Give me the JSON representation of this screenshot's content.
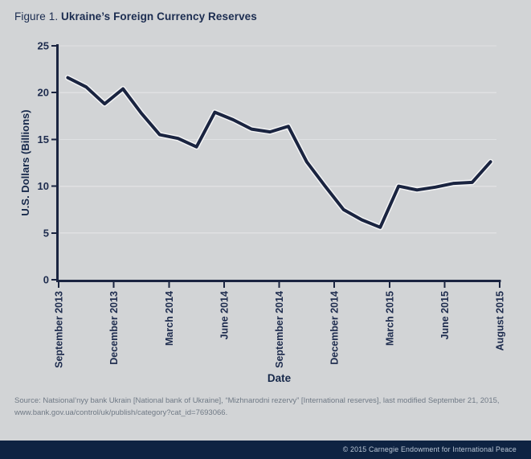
{
  "figure": {
    "label": "Figure 1.",
    "title": "Ukraine’s Foreign Currency Reserves"
  },
  "chart_data": {
    "type": "line",
    "title": "Ukraine’s Foreign Currency Reserves",
    "xlabel": "Date",
    "ylabel": "U.S. Dollars (Billions)",
    "ylim": [
      0,
      25
    ],
    "y_ticks": [
      0,
      5,
      10,
      15,
      20,
      25
    ],
    "grid": "horizontal",
    "legend": "none",
    "series_name": "Foreign currency reserves",
    "x": [
      "September 2013",
      "October 2013",
      "November 2013",
      "December 2013",
      "January 2014",
      "February 2014",
      "March 2014",
      "April 2014",
      "May 2014",
      "June 2014",
      "July 2014",
      "August 2014",
      "September 2014",
      "October 2014",
      "November 2014",
      "December 2014",
      "January 2015",
      "February 2015",
      "March 2015",
      "April 2015",
      "May 2015",
      "June 2015",
      "July 2015",
      "August 2015"
    ],
    "values": [
      21.6,
      20.6,
      18.8,
      20.4,
      17.8,
      15.5,
      15.1,
      14.2,
      17.9,
      17.1,
      16.1,
      15.8,
      16.4,
      12.6,
      10.0,
      7.5,
      6.4,
      5.6,
      10.0,
      9.6,
      9.9,
      10.3,
      10.4,
      12.6
    ],
    "x_tick_labels": [
      "September 2013",
      "December 2013",
      "March 2014",
      "June 2014",
      "September 2014",
      "December 2014",
      "March 2015",
      "June 2015",
      "August 2015"
    ],
    "colors": {
      "line": "#1a2440",
      "line_halo": "#ffffff",
      "axis": "#1a2440",
      "tick_label": "#1e2c4e",
      "axis_title": "#16284a",
      "gridline": "#e0e1e3",
      "background": "#d2d4d6"
    }
  },
  "source": {
    "line1": "Source: Natsional’nyy bank Ukrain [National bank of Ukraine], “Mizhnarodni rezervy” [International reserves], last modified September 21, 2015,",
    "line2": "www.bank.gov.ua/control/uk/publish/category?cat_id=7693066."
  },
  "footer": {
    "copyright": "© 2015 Carnegie Endowment for International Peace"
  }
}
